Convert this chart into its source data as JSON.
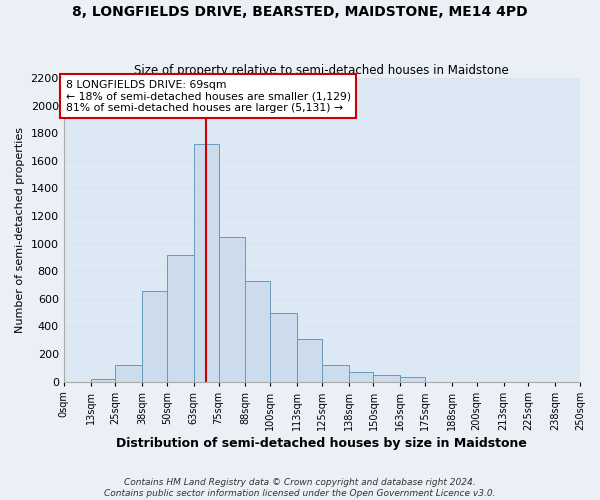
{
  "title": "8, LONGFIELDS DRIVE, BEARSTED, MAIDSTONE, ME14 4PD",
  "subtitle": "Size of property relative to semi-detached houses in Maidstone",
  "xlabel": "Distribution of semi-detached houses by size in Maidstone",
  "ylabel": "Number of semi-detached properties",
  "footer_lines": [
    "Contains HM Land Registry data © Crown copyright and database right 2024.",
    "Contains public sector information licensed under the Open Government Licence v3.0."
  ],
  "bin_edges": [
    0,
    13,
    25,
    38,
    50,
    63,
    75,
    88,
    100,
    113,
    125,
    138,
    150,
    163,
    175,
    188,
    200,
    213,
    225,
    238,
    250
  ],
  "bin_labels": [
    "0sqm",
    "13sqm",
    "25sqm",
    "38sqm",
    "50sqm",
    "63sqm",
    "75sqm",
    "88sqm",
    "100sqm",
    "113sqm",
    "125sqm",
    "138sqm",
    "150sqm",
    "163sqm",
    "175sqm",
    "188sqm",
    "200sqm",
    "213sqm",
    "225sqm",
    "238sqm",
    "250sqm"
  ],
  "bar_heights": [
    0,
    20,
    120,
    660,
    920,
    1720,
    1050,
    730,
    500,
    310,
    120,
    70,
    45,
    30,
    0,
    0,
    0,
    0,
    0,
    0
  ],
  "bar_color": "#ccdcec",
  "bar_edge_color": "#6699bb",
  "property_value": 69,
  "red_line_color": "#cc0000",
  "annotation_text": "8 LONGFIELDS DRIVE: 69sqm\n← 18% of semi-detached houses are smaller (1,129)\n81% of semi-detached houses are larger (5,131) →",
  "annotation_box_color": "#ffffff",
  "annotation_box_edge_color": "#cc0000",
  "ylim": [
    0,
    2200
  ],
  "yticks": [
    0,
    200,
    400,
    600,
    800,
    1000,
    1200,
    1400,
    1600,
    1800,
    2000,
    2200
  ],
  "background_color": "#eaf0f6",
  "grid_color": "#d8e4f0",
  "plot_bg_color": "#dce8f4"
}
